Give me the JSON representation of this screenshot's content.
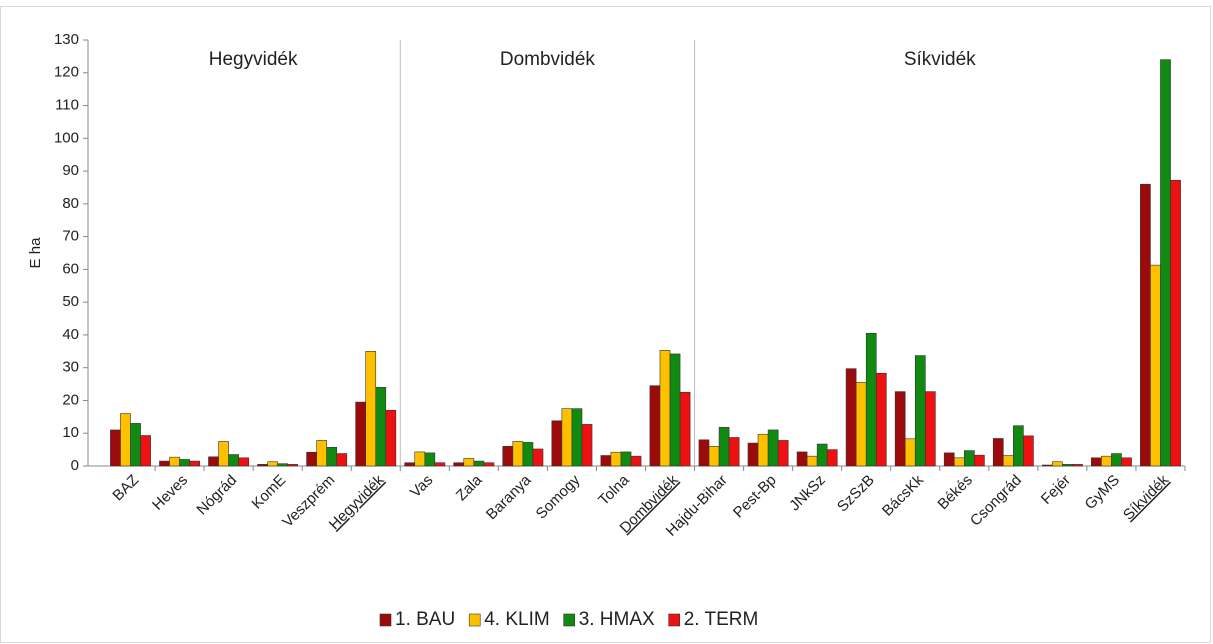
{
  "chart_data": {
    "type": "bar",
    "y_label": "E ha",
    "categories": [
      "BAZ",
      "Heves",
      "Nógrád",
      "KomE",
      "Veszprém",
      "Hegyvidék",
      "Vas",
      "Zala",
      "Baranya",
      "Somogy",
      "Tolna",
      "Dombvidék",
      "Hajdu-Bihar",
      "Pest-Bp",
      "JNkSz",
      "SzSzB",
      "BácsKk",
      "Békés",
      "Csongrád",
      "Fejér",
      "GyMS",
      "Síkvidék"
    ],
    "regions": [
      {
        "name": "Hegyvidék",
        "start": 0,
        "end": 5
      },
      {
        "name": "Dombvidék",
        "start": 6,
        "end": 11
      },
      {
        "name": "Síkvidék",
        "start": 12,
        "end": 21
      }
    ],
    "series": [
      {
        "name": "1. BAU",
        "color": "#9b0b0b",
        "values": [
          11,
          1.5,
          2.8,
          0.5,
          4.2,
          19.5,
          1,
          1,
          6,
          13.8,
          3.2,
          24.5,
          8,
          7,
          4.3,
          29.7,
          22.7,
          4,
          8.4,
          0.3,
          2.5,
          86
        ]
      },
      {
        "name": "4. KLIM",
        "color": "#ffc000",
        "values": [
          16,
          2.7,
          7.5,
          1.3,
          7.8,
          35,
          4.3,
          2.3,
          7.5,
          17.5,
          4.2,
          35.3,
          6,
          9.7,
          3,
          25.5,
          8.3,
          2.5,
          3.2,
          1.3,
          3,
          61.3
        ]
      },
      {
        "name": "3. HMAX",
        "color": "#118a11",
        "values": [
          13,
          2,
          3.5,
          0.7,
          5.7,
          24,
          4,
          1.5,
          7.2,
          17.5,
          4.3,
          34.2,
          11.8,
          11,
          6.7,
          40.5,
          33.7,
          4.7,
          12.3,
          0.5,
          3.8,
          124
        ]
      },
      {
        "name": "2. TERM",
        "color": "#ee1111",
        "values": [
          9.3,
          1.5,
          2.5,
          0.5,
          3.8,
          17,
          1,
          1,
          5.2,
          12.7,
          3,
          22.5,
          8.7,
          7.8,
          5,
          28.3,
          22.7,
          3.3,
          9.2,
          0.5,
          2.5,
          87.2
        ]
      }
    ],
    "ylim": [
      0,
      130
    ],
    "yticks": [
      0,
      10,
      20,
      30,
      40,
      50,
      60,
      70,
      80,
      90,
      100,
      110,
      120,
      130
    ]
  }
}
